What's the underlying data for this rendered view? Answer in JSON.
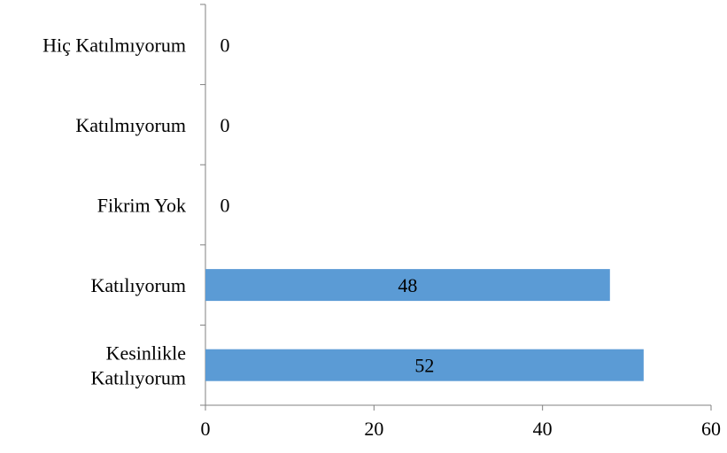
{
  "chart_data": {
    "type": "bar",
    "orientation": "horizontal",
    "categories": [
      [
        "Hiç Katılmıyorum"
      ],
      [
        "Katılmıyorum"
      ],
      [
        "Fikrim Yok"
      ],
      [
        "Katılıyorum"
      ],
      [
        "Kesinlikle",
        "Katılıyorum"
      ]
    ],
    "values": [
      0,
      0,
      0,
      48,
      52
    ],
    "data_labels": [
      "0",
      "0",
      "0",
      "48",
      "52"
    ],
    "xlim": [
      0,
      60
    ],
    "xticks": [
      0,
      20,
      40,
      60
    ],
    "title": "",
    "xlabel": "",
    "ylabel": "",
    "grid": false,
    "bar_color": "#5b9bd5",
    "axis_color": "#808080"
  }
}
